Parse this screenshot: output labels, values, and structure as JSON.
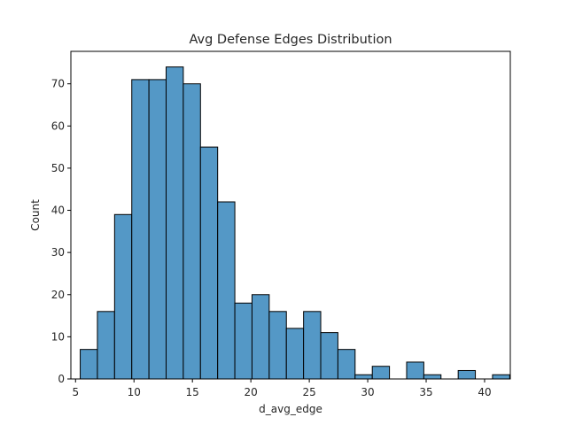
{
  "chart_data": {
    "type": "bar",
    "title": "Avg Defense Edges Distribution",
    "xlabel": "d_avg_edge",
    "ylabel": "Count",
    "xlim": [
      4.6,
      42.2
    ],
    "ylim": [
      0,
      77.7
    ],
    "xticks": [
      5,
      10,
      15,
      20,
      25,
      30,
      35,
      40
    ],
    "yticks": [
      0,
      10,
      20,
      30,
      40,
      50,
      60,
      70
    ],
    "bin_start": 5.4,
    "bin_width": 1.47,
    "values": [
      7,
      16,
      39,
      71,
      71,
      74,
      70,
      55,
      42,
      18,
      20,
      16,
      12,
      16,
      11,
      7,
      1,
      3,
      0,
      4,
      1,
      0,
      2,
      0,
      1
    ],
    "bar_color": "#5498C6",
    "edge_color": "#000000",
    "grid": false,
    "legend": "none"
  }
}
